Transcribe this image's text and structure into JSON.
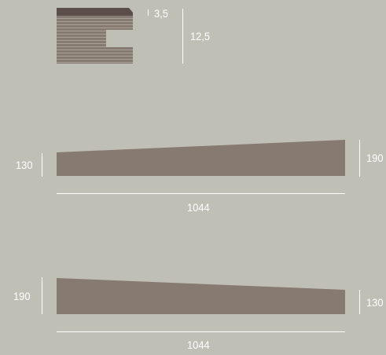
{
  "colors": {
    "background": "#c0bfb6",
    "board": "#877a70",
    "top_layer": "#5b4d47",
    "dimension_lines": "#ffffff"
  },
  "profile": {
    "top_thickness_label": "3,5",
    "total_thickness_label": "12,5"
  },
  "ramp_up": {
    "left_height_label": "130",
    "right_height_label": "190",
    "length_label": "1044"
  },
  "ramp_down": {
    "left_height_label": "190",
    "right_height_label": "130",
    "length_label": "1044"
  }
}
